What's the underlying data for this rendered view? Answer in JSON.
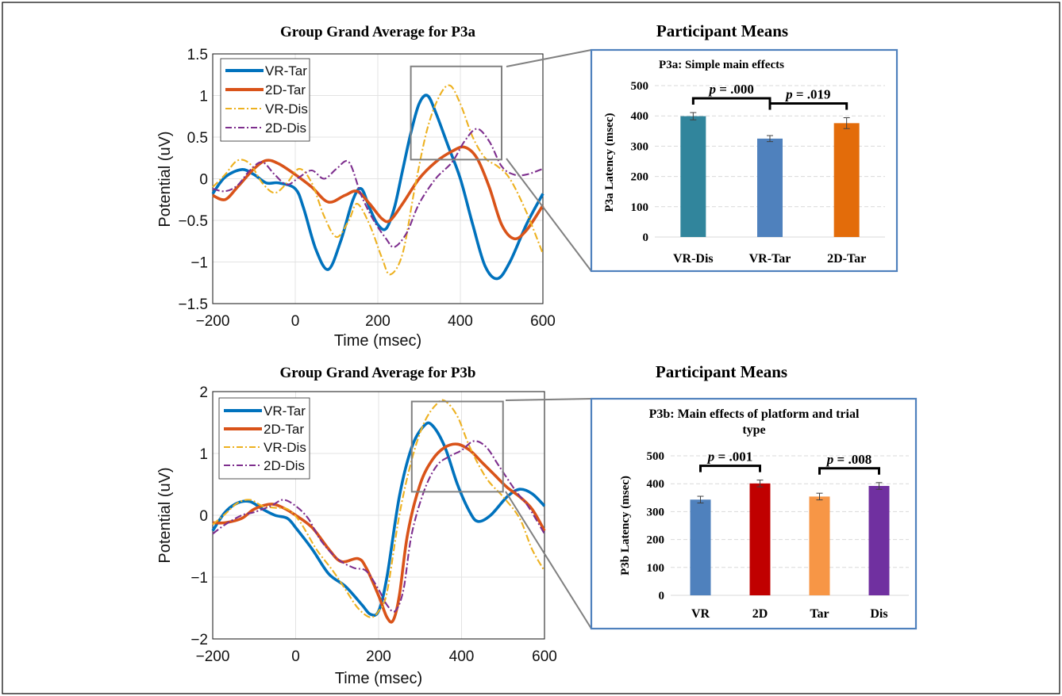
{
  "colors": {
    "vr_tar": "#0072BD",
    "tar_2d": "#D95319",
    "vr_dis": "#EDB120",
    "dis_2d": "#7E2F8E",
    "panel_border": "#4F81BD",
    "zoom_box": "#808080",
    "bar_teal": "#31859C",
    "bar_blue": "#4F81BD",
    "bar_orange": "#E36C0A",
    "bar_red": "#C00000",
    "bar_light_orange": "#F79646",
    "bar_purple": "#7030A0"
  },
  "chart_data": [
    {
      "type": "line",
      "title": "Group Grand Average for P3a",
      "xlabel": "Time (msec)",
      "ylabel": "Potential (uV)",
      "xlim": [
        -200,
        600
      ],
      "ylim": [
        -1.5,
        1.5
      ],
      "xticks": [
        -200,
        0,
        200,
        400,
        600
      ],
      "xtick_labels": [
        "−200",
        "0",
        "200",
        "400",
        "600"
      ],
      "yticks": [
        -1.5,
        -1,
        -0.5,
        0,
        0.5,
        1,
        1.5
      ],
      "ytick_labels": [
        "−1.5",
        "−1",
        "−0.5",
        "0",
        "0.5",
        "1",
        "1.5"
      ],
      "grid": true,
      "legend_position": "top-left",
      "zoom_box": {
        "x": [
          280,
          500
        ],
        "y": [
          0.23,
          1.35
        ]
      },
      "series": [
        {
          "name": "VR-Tar",
          "style": "solid",
          "color": "vr_tar",
          "points": [
            [
              -200,
              -0.18
            ],
            [
              -170,
              0.02
            ],
            [
              -130,
              0.11
            ],
            [
              -100,
              0.05
            ],
            [
              -70,
              -0.05
            ],
            [
              -40,
              -0.05
            ],
            [
              0,
              -0.12
            ],
            [
              20,
              -0.35
            ],
            [
              50,
              -0.85
            ],
            [
              80,
              -1.09
            ],
            [
              110,
              -0.75
            ],
            [
              140,
              -0.25
            ],
            [
              160,
              -0.12
            ],
            [
              180,
              -0.35
            ],
            [
              200,
              -0.55
            ],
            [
              220,
              -0.6
            ],
            [
              240,
              -0.35
            ],
            [
              260,
              0.1
            ],
            [
              280,
              0.55
            ],
            [
              300,
              0.9
            ],
            [
              320,
              1.0
            ],
            [
              340,
              0.8
            ],
            [
              370,
              0.4
            ],
            [
              400,
              0.0
            ],
            [
              430,
              -0.55
            ],
            [
              460,
              -1.05
            ],
            [
              490,
              -1.2
            ],
            [
              520,
              -1.0
            ],
            [
              560,
              -0.55
            ],
            [
              600,
              -0.18
            ]
          ]
        },
        {
          "name": "2D-Tar",
          "style": "solid",
          "color": "tar_2d",
          "points": [
            [
              -200,
              -0.2
            ],
            [
              -170,
              -0.25
            ],
            [
              -140,
              -0.1
            ],
            [
              -100,
              0.12
            ],
            [
              -70,
              0.22
            ],
            [
              -40,
              0.18
            ],
            [
              0,
              0.05
            ],
            [
              40,
              -0.1
            ],
            [
              80,
              -0.28
            ],
            [
              120,
              -0.2
            ],
            [
              150,
              -0.15
            ],
            [
              180,
              -0.3
            ],
            [
              210,
              -0.48
            ],
            [
              230,
              -0.5
            ],
            [
              260,
              -0.3
            ],
            [
              300,
              0.0
            ],
            [
              340,
              0.2
            ],
            [
              380,
              0.33
            ],
            [
              410,
              0.38
            ],
            [
              440,
              0.25
            ],
            [
              470,
              -0.1
            ],
            [
              500,
              -0.55
            ],
            [
              530,
              -0.72
            ],
            [
              560,
              -0.62
            ],
            [
              600,
              -0.32
            ]
          ]
        },
        {
          "name": "VR-Dis",
          "style": "dashdot",
          "color": "vr_dis",
          "points": [
            [
              -200,
              -0.1
            ],
            [
              -170,
              0.05
            ],
            [
              -140,
              0.22
            ],
            [
              -110,
              0.18
            ],
            [
              -80,
              -0.05
            ],
            [
              -50,
              -0.17
            ],
            [
              -20,
              -0.05
            ],
            [
              10,
              0.12
            ],
            [
              40,
              -0.05
            ],
            [
              70,
              -0.45
            ],
            [
              100,
              -0.7
            ],
            [
              130,
              -0.5
            ],
            [
              150,
              -0.3
            ],
            [
              180,
              -0.55
            ],
            [
              210,
              -0.95
            ],
            [
              230,
              -1.15
            ],
            [
              260,
              -0.9
            ],
            [
              290,
              -0.1
            ],
            [
              320,
              0.6
            ],
            [
              350,
              1.0
            ],
            [
              375,
              1.12
            ],
            [
              400,
              0.9
            ],
            [
              430,
              0.5
            ],
            [
              460,
              0.25
            ],
            [
              490,
              0.15
            ],
            [
              520,
              0.0
            ],
            [
              560,
              -0.4
            ],
            [
              600,
              -0.9
            ]
          ]
        },
        {
          "name": "2D-Dis",
          "style": "dashdot",
          "color": "dis_2d",
          "points": [
            [
              -200,
              -0.12
            ],
            [
              -170,
              -0.15
            ],
            [
              -140,
              -0.08
            ],
            [
              -110,
              0.1
            ],
            [
              -80,
              0.2
            ],
            [
              -50,
              0.05
            ],
            [
              -20,
              -0.07
            ],
            [
              10,
              0.02
            ],
            [
              40,
              0.1
            ],
            [
              70,
              0.0
            ],
            [
              100,
              0.12
            ],
            [
              130,
              0.2
            ],
            [
              160,
              -0.2
            ],
            [
              190,
              -0.5
            ],
            [
              220,
              -0.72
            ],
            [
              240,
              -0.82
            ],
            [
              270,
              -0.65
            ],
            [
              300,
              -0.3
            ],
            [
              340,
              0.0
            ],
            [
              380,
              0.2
            ],
            [
              410,
              0.45
            ],
            [
              440,
              0.6
            ],
            [
              470,
              0.45
            ],
            [
              500,
              0.15
            ],
            [
              530,
              0.05
            ],
            [
              560,
              0.05
            ],
            [
              600,
              0.12
            ]
          ]
        }
      ]
    },
    {
      "type": "bar",
      "heading": "Participant Means",
      "title": "P3a: Simple main effects",
      "ylabel": "P3a Latency (msec)",
      "categories": [
        "VR-Dis",
        "VR-Tar",
        "2D-Tar"
      ],
      "values": [
        399,
        325,
        376
      ],
      "errors": [
        12,
        10,
        18
      ],
      "bar_colors": [
        "bar_teal",
        "bar_blue",
        "bar_orange"
      ],
      "ylim": [
        0,
        500
      ],
      "yticks": [
        0,
        100,
        200,
        300,
        400,
        500
      ],
      "grid": true,
      "significance": [
        {
          "from": 0,
          "to": 1,
          "label": "p = .000"
        },
        {
          "from": 1,
          "to": 2,
          "label": "p = .019"
        }
      ]
    },
    {
      "type": "line",
      "title": "Group Grand Average for P3b",
      "xlabel": "Time (msec)",
      "ylabel": "Potential (uV)",
      "xlim": [
        -200,
        600
      ],
      "ylim": [
        -2,
        2
      ],
      "xticks": [
        -200,
        0,
        200,
        400,
        600
      ],
      "xtick_labels": [
        "−200",
        "0",
        "200",
        "400",
        "600"
      ],
      "yticks": [
        -2,
        -1,
        0,
        1,
        2
      ],
      "ytick_labels": [
        "−2",
        "−1",
        "0",
        "1",
        "2"
      ],
      "grid": true,
      "legend_position": "top-left",
      "zoom_box": {
        "x": [
          280,
          500
        ],
        "y": [
          0.38,
          1.84
        ]
      },
      "series": [
        {
          "name": "VR-Tar",
          "style": "solid",
          "color": "vr_tar",
          "points": [
            [
              -200,
              -0.25
            ],
            [
              -170,
              0.05
            ],
            [
              -140,
              0.2
            ],
            [
              -110,
              0.22
            ],
            [
              -80,
              0.1
            ],
            [
              -50,
              0.0
            ],
            [
              -20,
              -0.05
            ],
            [
              0,
              -0.2
            ],
            [
              40,
              -0.55
            ],
            [
              80,
              -0.95
            ],
            [
              120,
              -1.15
            ],
            [
              160,
              -1.45
            ],
            [
              180,
              -1.6
            ],
            [
              200,
              -1.55
            ],
            [
              220,
              -1.0
            ],
            [
              250,
              0.3
            ],
            [
              280,
              1.1
            ],
            [
              310,
              1.45
            ],
            [
              330,
              1.45
            ],
            [
              360,
              1.1
            ],
            [
              390,
              0.5
            ],
            [
              420,
              0.05
            ],
            [
              440,
              -0.1
            ],
            [
              470,
              0.0
            ],
            [
              510,
              0.3
            ],
            [
              540,
              0.42
            ],
            [
              570,
              0.35
            ],
            [
              600,
              0.15
            ]
          ]
        },
        {
          "name": "2D-Tar",
          "style": "solid",
          "color": "tar_2d",
          "points": [
            [
              -200,
              -0.12
            ],
            [
              -170,
              -0.12
            ],
            [
              -130,
              -0.05
            ],
            [
              -100,
              0.1
            ],
            [
              -60,
              0.18
            ],
            [
              -30,
              0.12
            ],
            [
              0,
              0.0
            ],
            [
              40,
              -0.2
            ],
            [
              80,
              -0.55
            ],
            [
              110,
              -0.75
            ],
            [
              150,
              -0.7
            ],
            [
              170,
              -0.85
            ],
            [
              200,
              -1.3
            ],
            [
              220,
              -1.65
            ],
            [
              235,
              -1.7
            ],
            [
              250,
              -1.3
            ],
            [
              270,
              -0.3
            ],
            [
              300,
              0.5
            ],
            [
              330,
              0.9
            ],
            [
              360,
              1.1
            ],
            [
              390,
              1.15
            ],
            [
              420,
              1.05
            ],
            [
              450,
              0.85
            ],
            [
              480,
              0.65
            ],
            [
              510,
              0.45
            ],
            [
              540,
              0.3
            ],
            [
              570,
              0.1
            ],
            [
              600,
              -0.25
            ]
          ]
        },
        {
          "name": "VR-Dis",
          "style": "dashdot",
          "color": "vr_dis",
          "points": [
            [
              -200,
              -0.15
            ],
            [
              -170,
              0.02
            ],
            [
              -140,
              0.2
            ],
            [
              -110,
              0.25
            ],
            [
              -80,
              0.15
            ],
            [
              -50,
              0.12
            ],
            [
              -20,
              0.1
            ],
            [
              10,
              -0.1
            ],
            [
              50,
              -0.55
            ],
            [
              90,
              -0.9
            ],
            [
              120,
              -1.2
            ],
            [
              150,
              -1.5
            ],
            [
              180,
              -1.65
            ],
            [
              200,
              -1.55
            ],
            [
              220,
              -1.25
            ],
            [
              250,
              0.0
            ],
            [
              280,
              0.9
            ],
            [
              310,
              1.5
            ],
            [
              340,
              1.8
            ],
            [
              360,
              1.85
            ],
            [
              390,
              1.6
            ],
            [
              420,
              1.1
            ],
            [
              460,
              0.6
            ],
            [
              500,
              0.3
            ],
            [
              540,
              -0.05
            ],
            [
              570,
              -0.55
            ],
            [
              600,
              -0.9
            ]
          ]
        },
        {
          "name": "2D-Dis",
          "style": "dashdot",
          "color": "dis_2d",
          "points": [
            [
              -200,
              -0.3
            ],
            [
              -170,
              -0.15
            ],
            [
              -130,
              0.0
            ],
            [
              -100,
              0.05
            ],
            [
              -60,
              0.15
            ],
            [
              -30,
              0.25
            ],
            [
              0,
              0.15
            ],
            [
              30,
              -0.05
            ],
            [
              60,
              -0.4
            ],
            [
              100,
              -0.7
            ],
            [
              140,
              -0.85
            ],
            [
              170,
              -0.9
            ],
            [
              200,
              -1.2
            ],
            [
              220,
              -1.45
            ],
            [
              240,
              -1.55
            ],
            [
              260,
              -1.2
            ],
            [
              280,
              -0.3
            ],
            [
              310,
              0.4
            ],
            [
              340,
              0.8
            ],
            [
              370,
              0.95
            ],
            [
              400,
              1.05
            ],
            [
              430,
              1.2
            ],
            [
              460,
              1.1
            ],
            [
              490,
              0.8
            ],
            [
              530,
              0.4
            ],
            [
              560,
              0.15
            ],
            [
              600,
              -0.3
            ]
          ]
        }
      ]
    },
    {
      "type": "bar",
      "heading": "Participant Means",
      "title": "P3b: Main effects of platform and trial type",
      "title_lines": [
        "P3b: Main effects of platform and trial",
        "type"
      ],
      "ylabel": "P3b Latency (msec)",
      "categories": [
        "VR",
        "2D",
        "Tar",
        "Dis"
      ],
      "values": [
        343,
        401,
        354,
        392
      ],
      "errors": [
        12,
        12,
        12,
        12
      ],
      "bar_colors": [
        "bar_blue",
        "bar_red",
        "bar_light_orange",
        "bar_purple"
      ],
      "ylim": [
        0,
        500
      ],
      "yticks": [
        0,
        100,
        200,
        300,
        400,
        500
      ],
      "grid": true,
      "significance": [
        {
          "from": 0,
          "to": 1,
          "label": "p = .001"
        },
        {
          "from": 2,
          "to": 3,
          "label": "p = .008"
        }
      ]
    }
  ]
}
